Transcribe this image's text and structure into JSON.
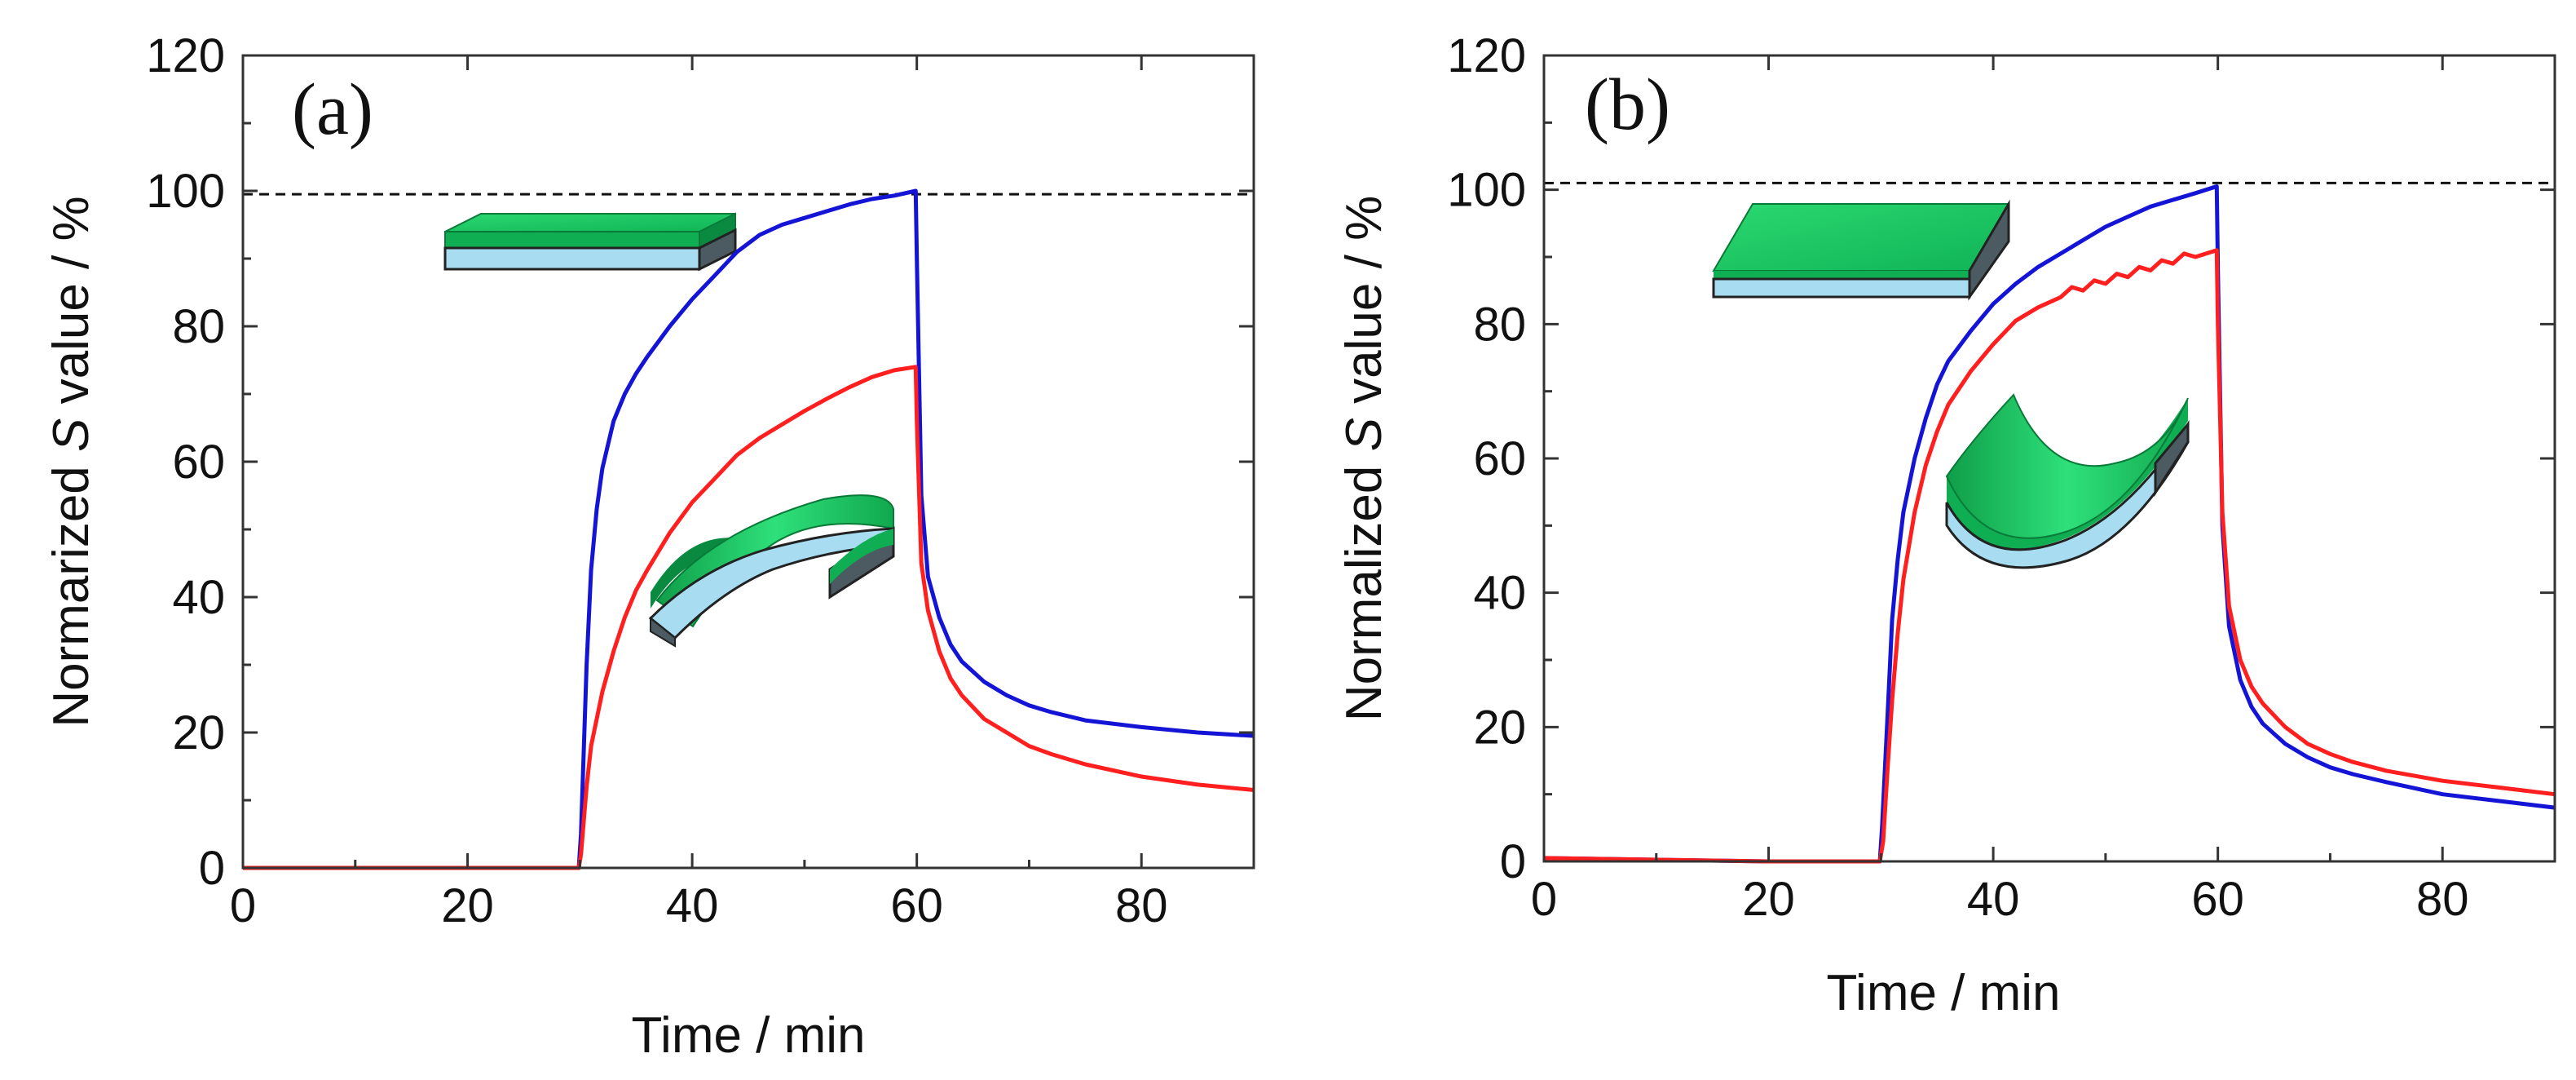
{
  "chart_data": [
    {
      "type": "line",
      "panel_label": "(a)",
      "xlabel": "Time / min",
      "ylabel_pre": "Normarized ",
      "ylabel_italic": "S",
      "ylabel_post": " value / %",
      "xlim": [
        0,
        90
      ],
      "ylim": [
        0,
        120
      ],
      "xticks": [
        0,
        20,
        40,
        60,
        80
      ],
      "yticks": [
        0,
        20,
        40,
        60,
        80,
        100,
        120
      ],
      "reference_line": 99.5,
      "inset_flat": "flat-film",
      "inset_bent": "convex-bent-film",
      "series": [
        {
          "name": "blue",
          "color": "#1414d6",
          "x": [
            0,
            20,
            29.9,
            30.1,
            30.6,
            31.0,
            31.5,
            32,
            33,
            34,
            35,
            36,
            38,
            40,
            42,
            44,
            46,
            48,
            50,
            52,
            54,
            56,
            58,
            59.9,
            60.0,
            60.4,
            61,
            62,
            63,
            64,
            66,
            68,
            70,
            72,
            75,
            80,
            85,
            90
          ],
          "values": [
            0,
            0,
            0,
            5,
            30,
            44,
            53,
            59,
            66,
            70,
            73,
            75.5,
            80,
            84,
            87.5,
            91,
            93.5,
            95,
            96,
            97,
            98,
            98.8,
            99.3,
            100,
            90,
            55,
            43,
            37,
            33,
            30.5,
            27.5,
            25.5,
            24,
            23,
            21.8,
            20.8,
            20,
            19.5
          ]
        },
        {
          "name": "red",
          "color": "#ff1f1f",
          "x": [
            0,
            20,
            29.9,
            30.1,
            30.6,
            31,
            31.5,
            32,
            33,
            34,
            35,
            36,
            38,
            40,
            42,
            44,
            46,
            48,
            50,
            52,
            54,
            56,
            58,
            59.9,
            60.0,
            60.4,
            61,
            62,
            63,
            64,
            66,
            68,
            70,
            72,
            75,
            80,
            85,
            90
          ],
          "values": [
            0,
            0,
            0,
            2,
            12,
            18,
            22,
            26,
            32,
            37,
            41,
            44,
            49.5,
            54,
            57.5,
            61,
            63.5,
            65.5,
            67.5,
            69.3,
            71,
            72.5,
            73.5,
            74,
            66,
            45,
            38,
            32,
            28,
            25.5,
            22,
            20,
            18,
            16.8,
            15.3,
            13.5,
            12.3,
            11.5
          ]
        }
      ]
    },
    {
      "type": "line",
      "panel_label": "(b)",
      "xlabel": "Time / min",
      "ylabel_pre": "Normalized ",
      "ylabel_italic": "S",
      "ylabel_post": " value / %",
      "xlim": [
        0,
        90
      ],
      "ylim": [
        0,
        120
      ],
      "xticks": [
        0,
        20,
        40,
        60,
        80
      ],
      "yticks": [
        0,
        20,
        40,
        60,
        80,
        100,
        120
      ],
      "reference_line": 101,
      "inset_flat": "flat-film",
      "inset_bent": "concave-bent-film",
      "series": [
        {
          "name": "blue",
          "color": "#1414d6",
          "x": [
            0,
            20,
            29.9,
            30.1,
            30.6,
            31,
            31.5,
            32,
            33,
            34,
            35,
            36,
            38,
            40,
            42,
            44,
            46,
            48,
            50,
            52,
            54,
            56,
            58,
            59.9,
            60.0,
            60.4,
            61,
            62,
            63,
            64,
            66,
            68,
            70,
            72,
            75,
            80,
            85,
            90
          ],
          "values": [
            0.5,
            0,
            0,
            5,
            22,
            36,
            45,
            52,
            60,
            66,
            71,
            74.5,
            79,
            83,
            86,
            88.5,
            90.5,
            92.5,
            94.5,
            96,
            97.5,
            98.5,
            99.5,
            100.5,
            88,
            50,
            35,
            27,
            23,
            20.5,
            17.5,
            15.5,
            14,
            13,
            11.8,
            10,
            9,
            8
          ]
        },
        {
          "name": "red",
          "color": "#ff1f1f",
          "x": [
            0,
            20,
            29.9,
            30.2,
            30.6,
            31,
            31.5,
            32,
            33,
            34,
            35,
            36,
            38,
            40,
            42,
            44,
            46,
            47,
            48,
            49,
            50,
            51,
            52,
            53,
            54,
            55,
            56,
            57,
            58,
            59.9,
            60.0,
            60.4,
            61,
            62,
            63,
            64,
            66,
            68,
            70,
            72,
            75,
            80,
            85,
            90
          ],
          "values": [
            0.5,
            0,
            0,
            3,
            14,
            24,
            34,
            42,
            52,
            59,
            64,
            68,
            73,
            77,
            80.5,
            82.5,
            84,
            85.5,
            85,
            86.5,
            86,
            87.5,
            87,
            88.5,
            88,
            89.5,
            89,
            90.5,
            90,
            91,
            80,
            52,
            38,
            30,
            26,
            23.5,
            20,
            17.5,
            16,
            14.8,
            13.5,
            12,
            11,
            10
          ]
        }
      ]
    }
  ]
}
